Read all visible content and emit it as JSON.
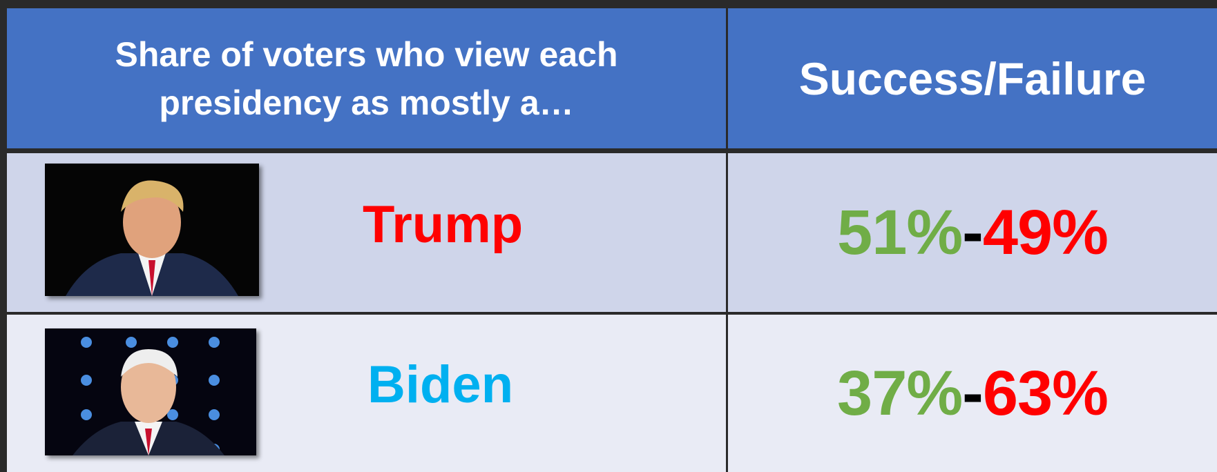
{
  "header": {
    "columns": [
      "Share of voters who view each presidency as mostly a…",
      "Success/Failure"
    ]
  },
  "table": {
    "rows": [
      {
        "name": "Trump",
        "success": "51%",
        "separator": "-",
        "failure": "49%"
      },
      {
        "name": "Biden",
        "success": "37%",
        "separator": "-",
        "failure": "63%"
      }
    ]
  }
}
